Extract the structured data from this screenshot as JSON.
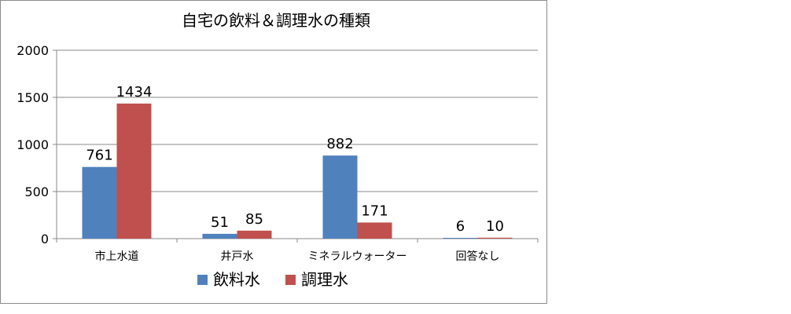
{
  "chart_data": {
    "type": "bar",
    "title": "自宅の飲料＆調理水の種類",
    "categories": [
      "市上水道",
      "井戸水",
      "ミネラルウォーター",
      "回答なし"
    ],
    "series": [
      {
        "name": "飲料水",
        "color": "#4f81bd",
        "values": [
          761,
          51,
          882,
          6
        ]
      },
      {
        "name": "調理水",
        "color": "#c0504d",
        "values": [
          1434,
          85,
          171,
          10
        ]
      }
    ],
    "ylim": [
      0,
      2000
    ],
    "yticks": [
      0,
      500,
      1000,
      1500,
      2000
    ],
    "grid": true,
    "legend_position": "bottom"
  }
}
